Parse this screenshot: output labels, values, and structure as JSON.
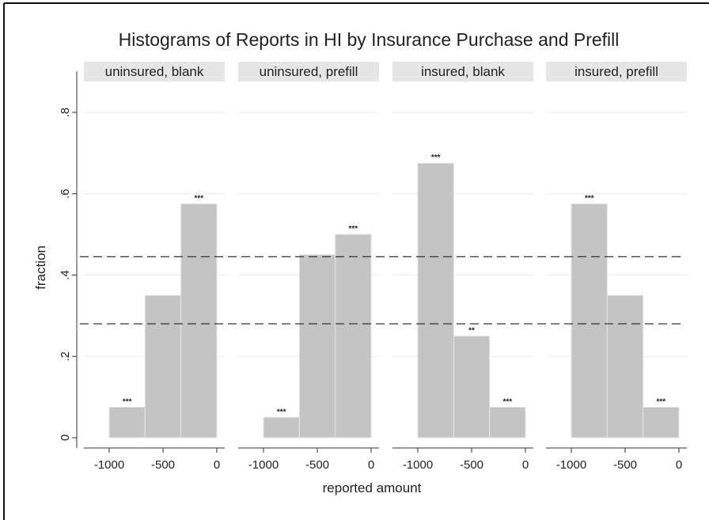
{
  "chart_data": {
    "type": "bar",
    "title": "Histograms of Reports in HI by Insurance Purchase and Prefill",
    "xlabel": "reported amount",
    "ylabel": "fraction",
    "ylim": [
      0,
      0.8
    ],
    "yticks": [
      {
        "value": 0,
        "label": "0"
      },
      {
        "value": 0.2,
        "label": ".2"
      },
      {
        "value": 0.4,
        "label": ".4"
      },
      {
        "value": 0.6,
        "label": ".6"
      },
      {
        "value": 0.8,
        "label": ".8"
      }
    ],
    "xlim": [
      -1000,
      0
    ],
    "xticks": [
      {
        "value": -1000,
        "label": "-1000"
      },
      {
        "value": -500,
        "label": "-500"
      },
      {
        "value": 0,
        "label": "0"
      }
    ],
    "bin_edges": [
      -1000,
      -666.67,
      -333.33,
      0
    ],
    "reference_lines": [
      0.445,
      0.28
    ],
    "grid": true,
    "panels": [
      {
        "label": "uninsured, blank",
        "values": [
          0.075,
          0.35,
          0.575
        ],
        "significance": [
          "***",
          "",
          "***"
        ]
      },
      {
        "label": "uninsured, prefill",
        "values": [
          0.05,
          0.45,
          0.5
        ],
        "significance": [
          "***",
          "",
          "***"
        ]
      },
      {
        "label": "insured, blank",
        "values": [
          0.675,
          0.25,
          0.075
        ],
        "significance": [
          "***",
          "**",
          "***"
        ]
      },
      {
        "label": "insured, prefill",
        "values": [
          0.575,
          0.35,
          0.075
        ],
        "significance": [
          "***",
          "",
          "***"
        ]
      }
    ]
  }
}
